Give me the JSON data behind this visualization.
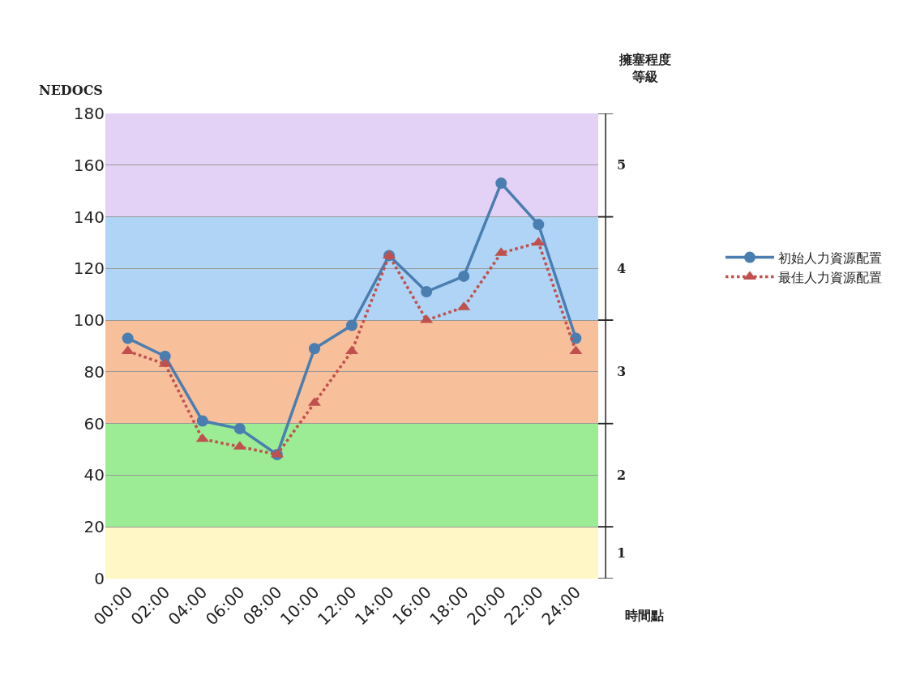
{
  "chart_data": {
    "type": "line",
    "categories": [
      "00:00",
      "02:00",
      "04:00",
      "06:00",
      "08:00",
      "10:00",
      "12:00",
      "14:00",
      "16:00",
      "18:00",
      "20:00",
      "22:00",
      "24:00"
    ],
    "series": [
      {
        "name": "初始人力資源配置",
        "color": "#4a7eb0",
        "marker": "circle",
        "line_style": "solid",
        "values": [
          93,
          86,
          61,
          58,
          48,
          89,
          98,
          125,
          111,
          117,
          153,
          137,
          93
        ]
      },
      {
        "name": "最佳人力資源配置",
        "color": "#c0504d",
        "marker": "triangle",
        "line_style": "dotted",
        "values": [
          88,
          83,
          54,
          51,
          48,
          68,
          88,
          125,
          100,
          105,
          126,
          130,
          88
        ]
      }
    ],
    "xlabel": "時間點",
    "ylabel": "NEDOCS",
    "y2label": "擁塞程度等級",
    "ylim": [
      0,
      180
    ],
    "yticks": [
      0,
      20,
      40,
      60,
      80,
      100,
      120,
      140,
      160,
      180
    ],
    "bands": [
      {
        "axis": "y",
        "from": 0,
        "to": 20,
        "color": "#fff8c6",
        "label": "1"
      },
      {
        "axis": "y",
        "from": 20,
        "to": 60,
        "color": "#9bec94",
        "label": "2"
      },
      {
        "axis": "y",
        "from": 60,
        "to": 100,
        "color": "#f7bf9a",
        "label": "3"
      },
      {
        "axis": "y",
        "from": 100,
        "to": 140,
        "color": "#afd4f6",
        "label": "4"
      },
      {
        "axis": "y",
        "from": 140,
        "to": 180,
        "color": "#e4d2f6",
        "label": "5"
      }
    ],
    "grid": "y",
    "legend": "right"
  }
}
